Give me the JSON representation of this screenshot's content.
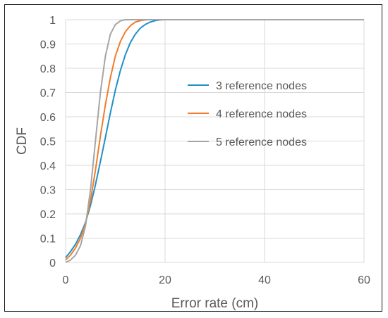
{
  "chart_data": {
    "type": "line",
    "title": "",
    "xlabel": "Error rate (cm)",
    "ylabel": "CDF",
    "xlim": [
      0,
      60
    ],
    "ylim": [
      0,
      1
    ],
    "x_ticks": [
      0,
      20,
      40,
      60
    ],
    "y_ticks": [
      0,
      0.1,
      0.2,
      0.3,
      0.4,
      0.5,
      0.6,
      0.7,
      0.8,
      0.9,
      1
    ],
    "grid": true,
    "legend_position": "right",
    "series": [
      {
        "name": "3 reference nodes",
        "color": "#1f90c8",
        "x": [
          0,
          1,
          2,
          3,
          4,
          5,
          6,
          7,
          8,
          9,
          10,
          11,
          12,
          13,
          14,
          15,
          16,
          17,
          18,
          19,
          20,
          22,
          25,
          30,
          40,
          60
        ],
        "y": [
          0.02,
          0.045,
          0.075,
          0.115,
          0.165,
          0.235,
          0.32,
          0.415,
          0.515,
          0.615,
          0.71,
          0.79,
          0.855,
          0.905,
          0.94,
          0.965,
          0.98,
          0.99,
          0.996,
          0.999,
          1.0,
          1.0,
          1.0,
          1.0,
          1.0,
          1.0
        ]
      },
      {
        "name": "4 reference nodes",
        "color": "#f07d2a",
        "x": [
          0,
          1,
          2,
          3,
          4,
          5,
          6,
          7,
          8,
          9,
          10,
          11,
          12,
          13,
          14,
          15,
          16,
          17,
          18,
          20,
          25,
          30,
          40,
          60
        ],
        "y": [
          0.01,
          0.03,
          0.06,
          0.1,
          0.16,
          0.255,
          0.38,
          0.52,
          0.65,
          0.76,
          0.85,
          0.91,
          0.95,
          0.975,
          0.99,
          0.996,
          0.999,
          1.0,
          1.0,
          1.0,
          1.0,
          1.0,
          1.0,
          1.0
        ]
      },
      {
        "name": "5 reference nodes",
        "color": "#a5a5a5",
        "x": [
          0,
          1,
          2,
          3,
          4,
          5,
          6,
          7,
          8,
          9,
          10,
          11,
          12,
          13,
          14,
          15,
          20,
          25,
          30,
          40,
          60
        ],
        "y": [
          0.0,
          0.01,
          0.03,
          0.07,
          0.15,
          0.3,
          0.5,
          0.7,
          0.85,
          0.94,
          0.98,
          0.995,
          1.0,
          1.0,
          1.0,
          1.0,
          1.0,
          1.0,
          1.0,
          1.0,
          1.0
        ]
      }
    ]
  }
}
